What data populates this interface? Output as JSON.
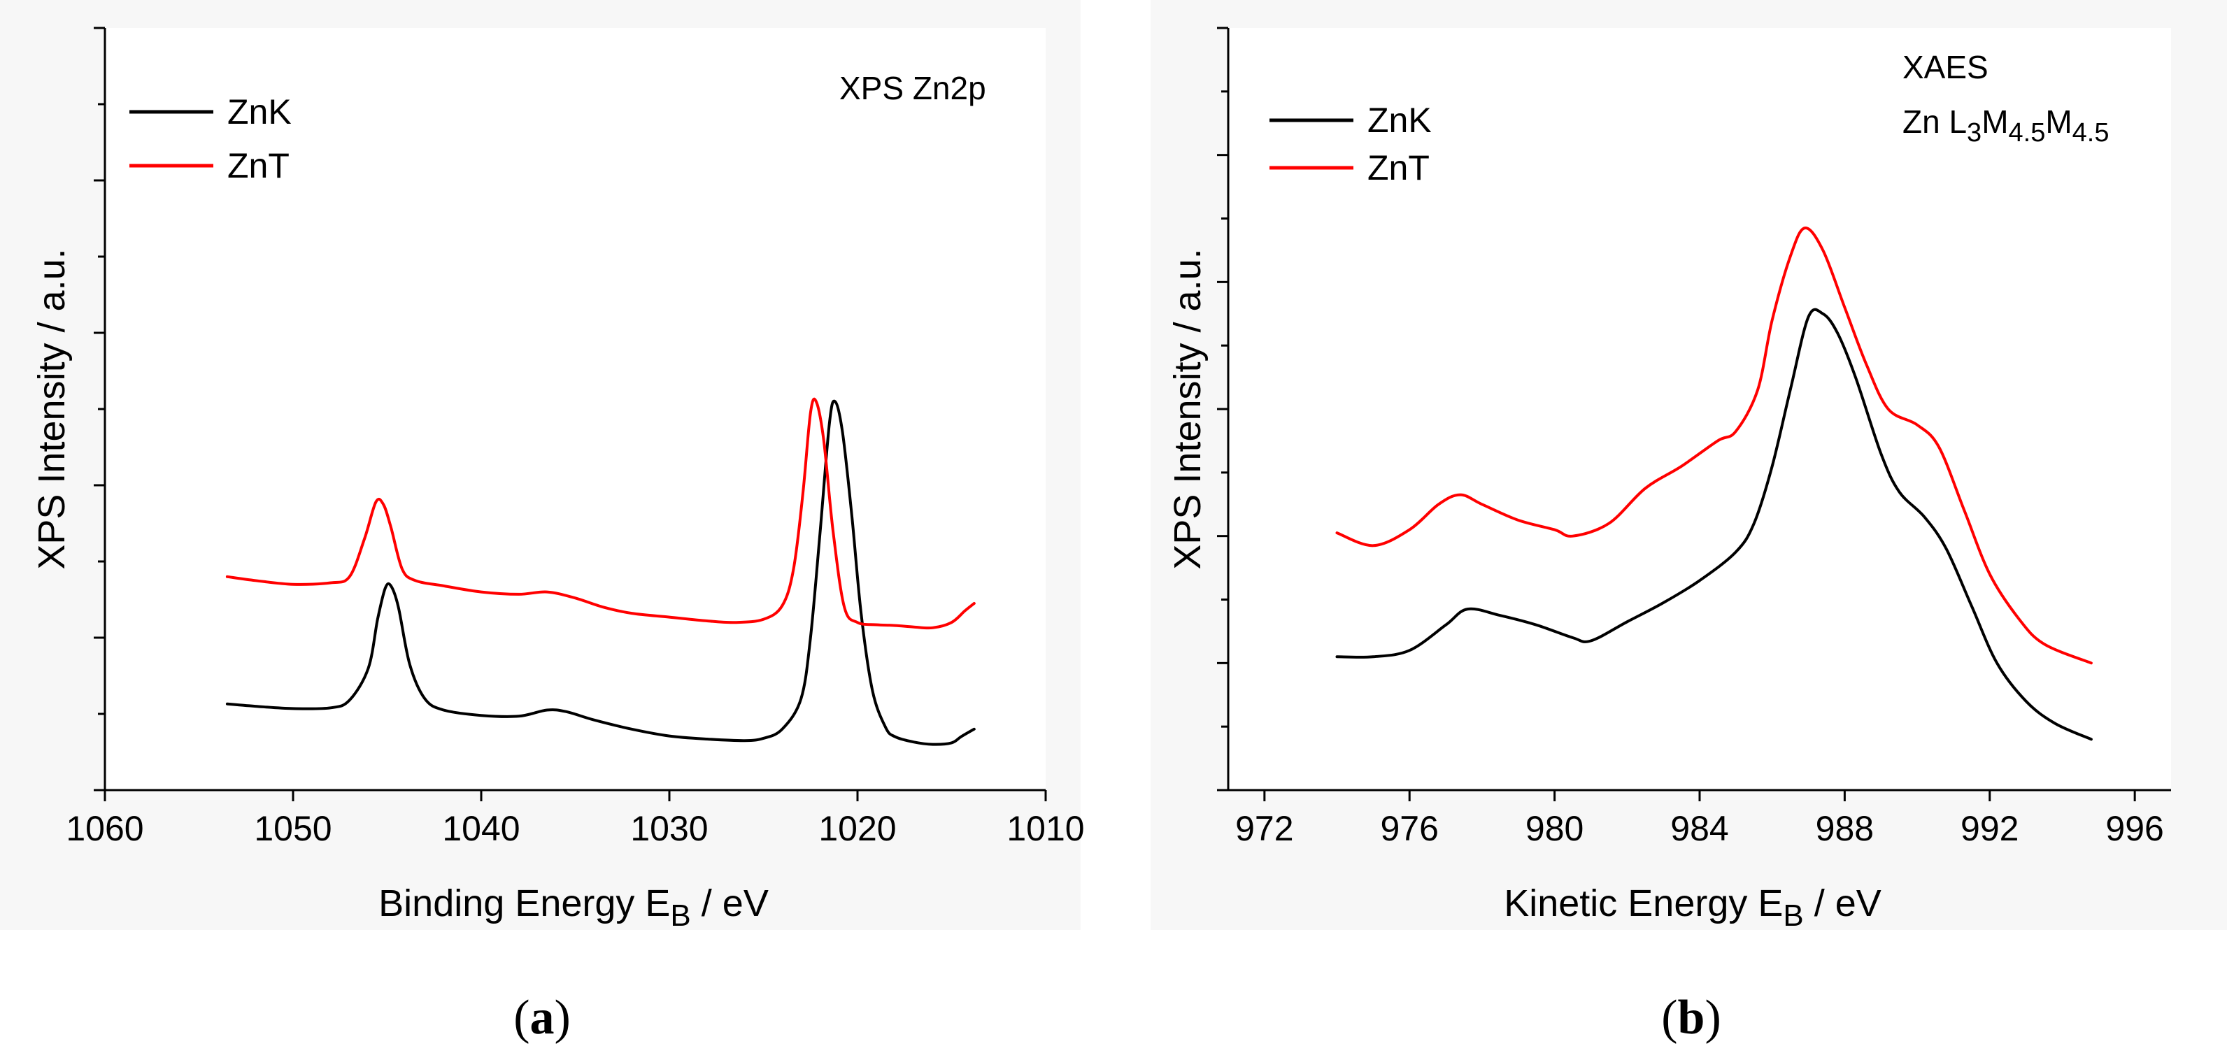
{
  "chart_data": [
    {
      "type": "line",
      "panel_label": "a",
      "xlabel": "Binding Energy  E",
      "xlabel_sub": "B",
      "xlabel_unit": " / eV",
      "ylabel": "XPS Intensity / a.u.",
      "xlim": [
        1060,
        1010
      ],
      "x_ticks": [
        1060,
        1050,
        1040,
        1030,
        1020,
        1010
      ],
      "tick_labels": [
        "1060",
        "1050",
        "1040",
        "1030",
        "1020",
        "1010"
      ],
      "annotation": "XPS Zn2p",
      "y_ticks_count": 11,
      "ylim": [
        0,
        10
      ],
      "series": [
        {
          "name": "ZnK",
          "color": "#000000",
          "points": [
            [
              1053.5,
              1.13
            ],
            [
              1052,
              1.1
            ],
            [
              1050,
              1.07
            ],
            [
              1048,
              1.08
            ],
            [
              1047,
              1.18
            ],
            [
              1046,
              1.6
            ],
            [
              1045.5,
              2.25
            ],
            [
              1045.1,
              2.65
            ],
            [
              1044.8,
              2.68
            ],
            [
              1044.4,
              2.4
            ],
            [
              1043.8,
              1.65
            ],
            [
              1043,
              1.2
            ],
            [
              1042,
              1.05
            ],
            [
              1040,
              0.98
            ],
            [
              1038,
              0.97
            ],
            [
              1036.5,
              1.05
            ],
            [
              1035.5,
              1.03
            ],
            [
              1034,
              0.92
            ],
            [
              1032,
              0.8
            ],
            [
              1030,
              0.71
            ],
            [
              1028,
              0.67
            ],
            [
              1026,
              0.65
            ],
            [
              1025,
              0.68
            ],
            [
              1024,
              0.8
            ],
            [
              1023,
              1.2
            ],
            [
              1022.5,
              2.0
            ],
            [
              1022,
              3.35
            ],
            [
              1021.5,
              4.8
            ],
            [
              1021.2,
              5.1
            ],
            [
              1020.8,
              4.7
            ],
            [
              1020.3,
              3.6
            ],
            [
              1019.8,
              2.3
            ],
            [
              1019.2,
              1.3
            ],
            [
              1018.5,
              0.82
            ],
            [
              1018,
              0.7
            ],
            [
              1017,
              0.63
            ],
            [
              1016,
              0.6
            ],
            [
              1015,
              0.62
            ],
            [
              1014.5,
              0.7
            ],
            [
              1013.8,
              0.8
            ]
          ]
        },
        {
          "name": "ZnT",
          "color": "#ff0000",
          "points": [
            [
              1053.5,
              2.8
            ],
            [
              1052,
              2.75
            ],
            [
              1050,
              2.7
            ],
            [
              1048,
              2.72
            ],
            [
              1047,
              2.8
            ],
            [
              1046.2,
              3.3
            ],
            [
              1045.6,
              3.78
            ],
            [
              1045.2,
              3.75
            ],
            [
              1044.8,
              3.45
            ],
            [
              1044.2,
              2.9
            ],
            [
              1043.5,
              2.75
            ],
            [
              1042,
              2.68
            ],
            [
              1040,
              2.6
            ],
            [
              1038,
              2.57
            ],
            [
              1036.5,
              2.6
            ],
            [
              1035,
              2.52
            ],
            [
              1033.5,
              2.4
            ],
            [
              1032,
              2.32
            ],
            [
              1030,
              2.27
            ],
            [
              1028,
              2.22
            ],
            [
              1026.5,
              2.2
            ],
            [
              1025,
              2.24
            ],
            [
              1024,
              2.42
            ],
            [
              1023.4,
              2.9
            ],
            [
              1022.9,
              3.9
            ],
            [
              1022.5,
              4.95
            ],
            [
              1022.2,
              5.1
            ],
            [
              1021.8,
              4.6
            ],
            [
              1021.3,
              3.4
            ],
            [
              1020.7,
              2.4
            ],
            [
              1020,
              2.2
            ],
            [
              1019,
              2.17
            ],
            [
              1018,
              2.16
            ],
            [
              1017,
              2.14
            ],
            [
              1016,
              2.13
            ],
            [
              1015,
              2.2
            ],
            [
              1014.3,
              2.35
            ],
            [
              1013.8,
              2.45
            ]
          ]
        }
      ]
    },
    {
      "type": "line",
      "panel_label": "b",
      "xlabel": "Kinetic Energy  E",
      "xlabel_sub": "B",
      "xlabel_unit": " / eV",
      "ylabel": "XPS Intensity / a.u.",
      "xlim": [
        971,
        997
      ],
      "x_ticks": [
        972,
        976,
        980,
        984,
        988,
        992,
        996
      ],
      "tick_labels": [
        "972",
        "976",
        "980",
        "984",
        "988",
        "992",
        "996"
      ],
      "annotation_line1": "XAES",
      "annotation_line2": "Zn L",
      "annotation_sub1": "3",
      "annotation_mid1": "M",
      "annotation_sub2": "4.5",
      "annotation_mid2": "M",
      "annotation_sub3": "4.5",
      "y_ticks_count": 13,
      "ylim": [
        0,
        12
      ],
      "series": [
        {
          "name": "ZnK",
          "color": "#000000",
          "points": [
            [
              974,
              2.1
            ],
            [
              975,
              2.1
            ],
            [
              976,
              2.2
            ],
            [
              977,
              2.6
            ],
            [
              977.6,
              2.85
            ],
            [
              978.5,
              2.75
            ],
            [
              979.5,
              2.6
            ],
            [
              980.5,
              2.4
            ],
            [
              981,
              2.35
            ],
            [
              982,
              2.65
            ],
            [
              983,
              2.95
            ],
            [
              984,
              3.3
            ],
            [
              985,
              3.75
            ],
            [
              985.5,
              4.2
            ],
            [
              986,
              5.1
            ],
            [
              986.5,
              6.3
            ],
            [
              987,
              7.45
            ],
            [
              987.4,
              7.5
            ],
            [
              987.8,
              7.2
            ],
            [
              988.3,
              6.5
            ],
            [
              989,
              5.3
            ],
            [
              989.5,
              4.7
            ],
            [
              990.2,
              4.3
            ],
            [
              990.8,
              3.8
            ],
            [
              991.5,
              2.9
            ],
            [
              992.2,
              2.0
            ],
            [
              993,
              1.4
            ],
            [
              993.8,
              1.05
            ],
            [
              994.8,
              0.8
            ]
          ]
        },
        {
          "name": "ZnT",
          "color": "#ff0000",
          "points": [
            [
              974,
              4.05
            ],
            [
              975,
              3.85
            ],
            [
              976,
              4.1
            ],
            [
              976.8,
              4.5
            ],
            [
              977.4,
              4.65
            ],
            [
              978,
              4.5
            ],
            [
              979,
              4.25
            ],
            [
              980,
              4.1
            ],
            [
              980.5,
              4.0
            ],
            [
              981.5,
              4.2
            ],
            [
              982.5,
              4.75
            ],
            [
              983.5,
              5.1
            ],
            [
              984.5,
              5.5
            ],
            [
              985,
              5.65
            ],
            [
              985.6,
              6.3
            ],
            [
              986,
              7.4
            ],
            [
              986.5,
              8.4
            ],
            [
              986.9,
              8.85
            ],
            [
              987.4,
              8.5
            ],
            [
              988,
              7.6
            ],
            [
              988.6,
              6.7
            ],
            [
              989.2,
              6.0
            ],
            [
              990,
              5.75
            ],
            [
              990.6,
              5.4
            ],
            [
              991.3,
              4.4
            ],
            [
              992,
              3.4
            ],
            [
              992.8,
              2.7
            ],
            [
              993.5,
              2.3
            ],
            [
              994.8,
              2.0
            ]
          ]
        }
      ]
    }
  ]
}
